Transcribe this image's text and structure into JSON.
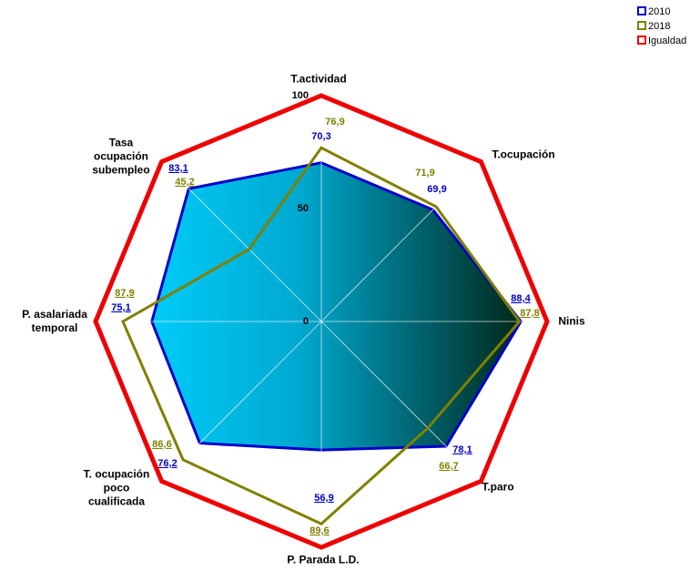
{
  "chart_data": {
    "type": "radar",
    "categories": [
      "T.actividad",
      "T.ocupación",
      "Ninis",
      "T.paro",
      "P. Parada L.D.",
      "T. ocupación\npoco\ncualificada",
      "P. asalariada\ntemporal",
      "Tasa\nocupación\nsubempleo"
    ],
    "series": [
      {
        "name": "2010",
        "color": "#0000cc",
        "values": [
          70.3,
          69.9,
          88.4,
          78.1,
          56.9,
          76.2,
          75.1,
          83.1
        ],
        "value_labels": [
          "70,3",
          "69,9",
          "88,4",
          "78,1",
          "56,9",
          "76,2",
          "75,1",
          "83,1"
        ]
      },
      {
        "name": "2018",
        "color": "#808000",
        "values": [
          76.9,
          71.9,
          87.8,
          66.7,
          89.6,
          86.6,
          87.9,
          45.2
        ],
        "value_labels": [
          "76,9",
          "71,9",
          "87,8",
          "66,7",
          "89,6",
          "86,6",
          "87,9",
          "45,2"
        ]
      },
      {
        "name": "Igualdad",
        "color": "#ee0000",
        "values": [
          100,
          100,
          100,
          100,
          100,
          100,
          100,
          100
        ]
      }
    ],
    "ylim": [
      0,
      100
    ],
    "yticks": [
      0,
      50,
      100
    ]
  }
}
